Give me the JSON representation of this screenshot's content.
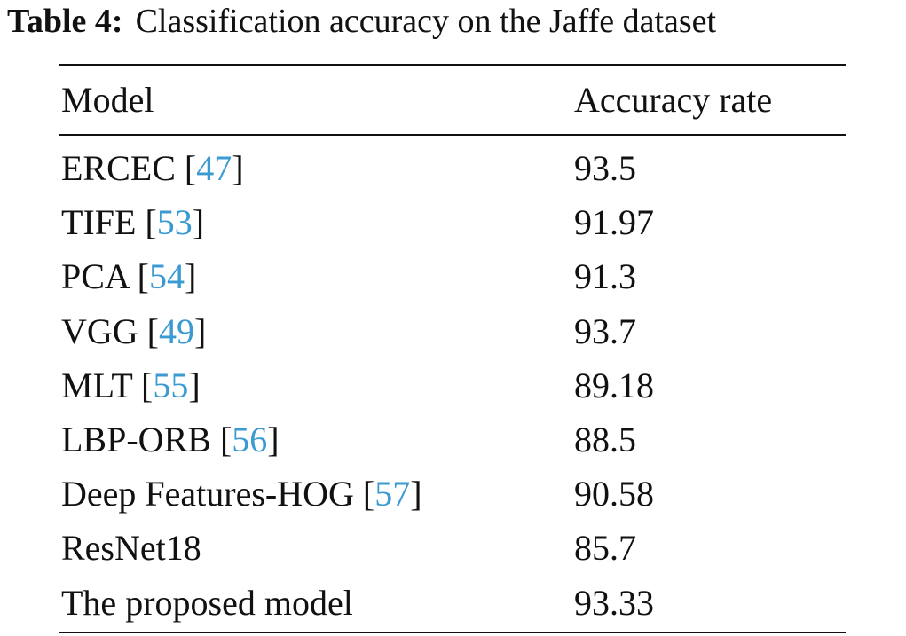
{
  "caption": {
    "label": "Table 4:",
    "text": "Classification accuracy on the Jaffe dataset"
  },
  "ref_brackets": [
    "[",
    "]"
  ],
  "table": {
    "header": [
      "Model",
      "Accuracy rate"
    ],
    "rows": [
      {
        "model": "ERCEC",
        "ref": "47",
        "accuracy": 93.5
      },
      {
        "model": "TIFE",
        "ref": "53",
        "accuracy": 91.97
      },
      {
        "model": "PCA",
        "ref": "54",
        "accuracy": 91.3
      },
      {
        "model": "VGG",
        "ref": "49",
        "accuracy": 93.7
      },
      {
        "model": "MLT",
        "ref": "55",
        "accuracy": 89.18
      },
      {
        "model": "LBP-ORB",
        "ref": "56",
        "accuracy": 88.5
      },
      {
        "model": "Deep Features-HOG",
        "ref": "57",
        "accuracy": 90.58
      },
      {
        "model": "ResNet18",
        "accuracy": 85.7
      },
      {
        "model": "The proposed model",
        "accuracy": 93.33
      }
    ]
  }
}
